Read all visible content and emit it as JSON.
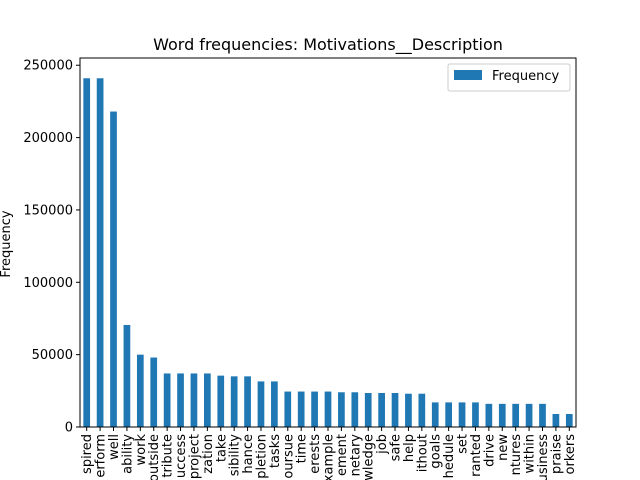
{
  "chart_data": {
    "type": "bar",
    "title": "Word frequencies: Motivations__Description",
    "xlabel": "",
    "ylabel": "Frequency",
    "ylim": [
      0,
      255000
    ],
    "yticks": [
      0,
      50000,
      100000,
      150000,
      200000,
      250000
    ],
    "grid": false,
    "legend_position": "top-right",
    "bar_color": "#1f77b4",
    "categories": [
      "spired",
      "erform",
      "well",
      "ability",
      "work",
      "outside",
      "tribute",
      "uccess",
      "project",
      "zation",
      "take",
      "sibility",
      "hance",
      "pletion",
      "tasks",
      "oursue",
      "time",
      "erests",
      "xample",
      "ement",
      "netary",
      "wledge",
      "job",
      "safe",
      "help",
      "ithout",
      "goals",
      "hedule",
      "set",
      "ranted",
      "drive",
      "new",
      "ntures",
      "within",
      "usiness",
      "praise",
      "orkers"
    ],
    "series": [
      {
        "name": "Frequency",
        "values": [
          241000,
          241000,
          218000,
          70500,
          50000,
          48000,
          37000,
          37000,
          37000,
          37000,
          35500,
          35000,
          35000,
          31500,
          31500,
          24500,
          24500,
          24500,
          24500,
          24000,
          24000,
          23500,
          23500,
          23500,
          23000,
          23000,
          17000,
          17000,
          17000,
          17000,
          16000,
          16000,
          16000,
          16000,
          16000,
          9000,
          9000
        ]
      }
    ]
  }
}
